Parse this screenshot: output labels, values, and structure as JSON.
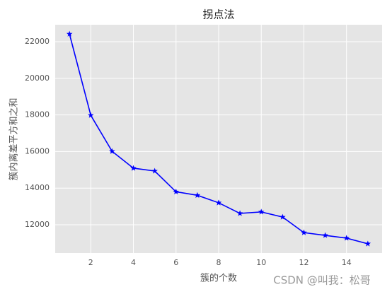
{
  "chart_data": {
    "type": "line",
    "title": "拐点法",
    "x_label": "簇的个数",
    "y_label": "簇内离差平方和之和",
    "x": [
      1,
      2,
      3,
      4,
      5,
      6,
      7,
      8,
      9,
      10,
      11,
      12,
      13,
      14,
      15
    ],
    "series": [
      {
        "color": "#0000ff",
        "marker": "star",
        "values": [
          22420,
          17980,
          16010,
          15090,
          14935,
          13800,
          13610,
          13200,
          12620,
          12700,
          12420,
          11570,
          11420,
          11270,
          10960
        ]
      }
    ],
    "xlim": [
      0.33,
      15.67
    ],
    "ylim": [
      10456,
      22927
    ],
    "xticks": [
      2,
      4,
      6,
      8,
      10,
      12,
      14
    ],
    "yticks": [
      12000,
      14000,
      16000,
      18000,
      20000,
      22000
    ],
    "grid": true
  },
  "watermark": "CSDN @叫我：松哥"
}
